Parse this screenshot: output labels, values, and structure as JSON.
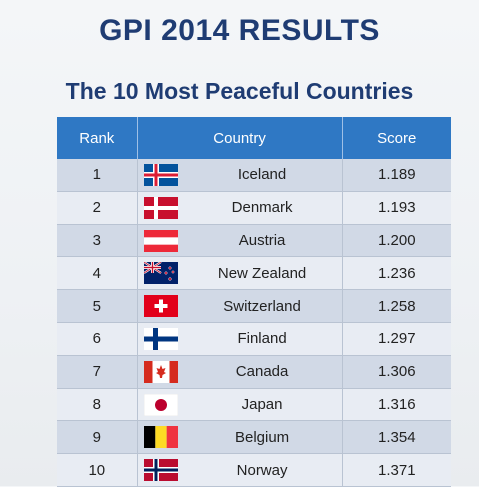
{
  "title": "GPI 2014 RESULTS",
  "subtitle": "The 10 Most Peaceful Countries",
  "table": {
    "headers": {
      "rank": "Rank",
      "country": "Country",
      "score": "Score"
    },
    "rows": [
      {
        "rank": "1",
        "country": "Iceland",
        "score": "1.189",
        "flag": "iceland-flag-icon"
      },
      {
        "rank": "2",
        "country": "Denmark",
        "score": "1.193",
        "flag": "denmark-flag-icon"
      },
      {
        "rank": "3",
        "country": "Austria",
        "score": "1.200",
        "flag": "austria-flag-icon"
      },
      {
        "rank": "4",
        "country": "New Zealand",
        "score": "1.236",
        "flag": "new-zealand-flag-icon"
      },
      {
        "rank": "5",
        "country": "Switzerland",
        "score": "1.258",
        "flag": "switzerland-flag-icon"
      },
      {
        "rank": "6",
        "country": "Finland",
        "score": "1.297",
        "flag": "finland-flag-icon"
      },
      {
        "rank": "7",
        "country": "Canada",
        "score": "1.306",
        "flag": "canada-flag-icon"
      },
      {
        "rank": "8",
        "country": "Japan",
        "score": "1.316",
        "flag": "japan-flag-icon"
      },
      {
        "rank": "9",
        "country": "Belgium",
        "score": "1.354",
        "flag": "belgium-flag-icon"
      },
      {
        "rank": "10",
        "country": "Norway",
        "score": "1.371",
        "flag": "norway-flag-icon"
      }
    ]
  },
  "colors": {
    "title": "#1f3c73",
    "header_bg": "#2f78c4",
    "row_dark": "#d1d9e6",
    "row_light": "#e8ecf3"
  }
}
